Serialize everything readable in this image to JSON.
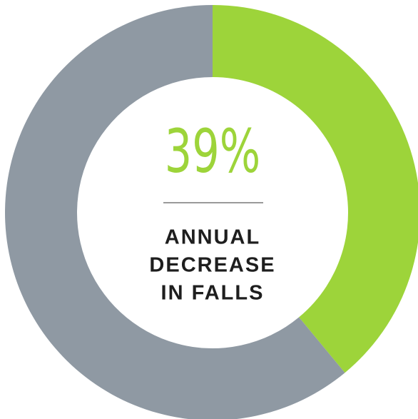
{
  "chart_data": {
    "type": "donut",
    "categories": [
      null,
      null
    ],
    "values": [
      39,
      61
    ],
    "value_labels": [
      "39%",
      null
    ],
    "colors": [
      "#9dd43a",
      "#8f99a3"
    ],
    "annotation": [
      "ANNUAL",
      "DECREASE",
      "IN FALLS"
    ]
  }
}
